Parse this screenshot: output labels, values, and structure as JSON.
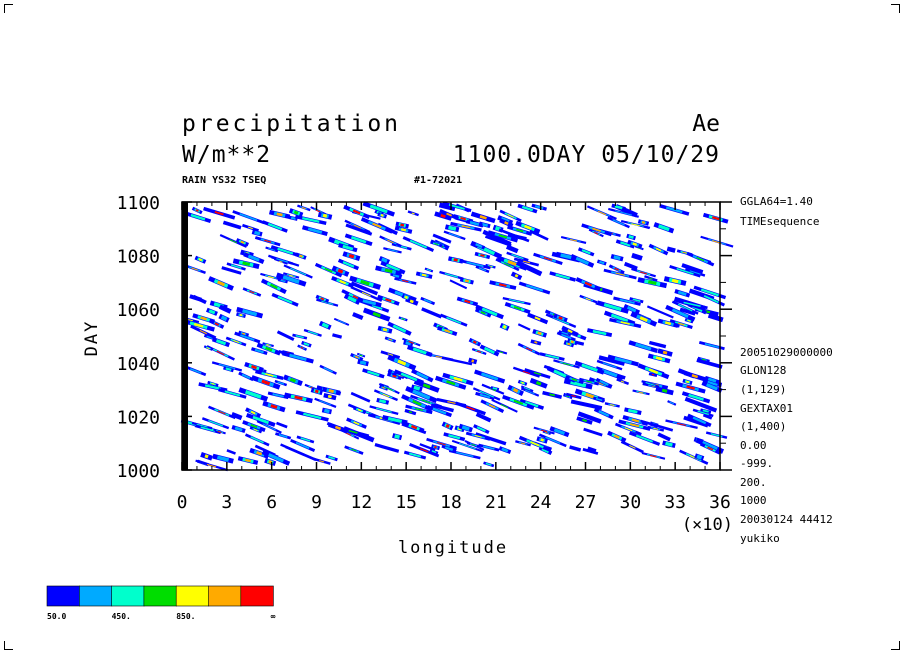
{
  "header": {
    "title": "precipitation",
    "model": "Ae",
    "units": "W/m**2",
    "time": "1100.0DAY 05/10/29",
    "varinfo": "RAIN YS32 TSEQ",
    "ref": "#1-72021"
  },
  "sideinfo": [
    "GGLA64=1.40",
    "TIMEsequence",
    "20051029000000",
    "GLON128",
    "(1,129)",
    "GEXTAX01",
    "(1,400)",
    "0.00",
    "-999.",
    "200.",
    "1000",
    "20030124  44412",
    "yukiko"
  ],
  "chart_data": {
    "type": "heatmap",
    "title": "precipitation",
    "xlabel": "longitude",
    "ylabel": "DAY",
    "x_multiplier": "(×10)",
    "xlim": [
      0,
      36
    ],
    "ylim": [
      1000,
      1100
    ],
    "x_ticks": [
      "0",
      "3",
      "6",
      "9",
      "12",
      "15",
      "18",
      "21",
      "24",
      "27",
      "30",
      "33",
      "36"
    ],
    "y_ticks": [
      "1000",
      "1020",
      "1040",
      "1060",
      "1080",
      "1100"
    ],
    "colorbar": {
      "colors": [
        "#0000ff",
        "#00aaff",
        "#00ffcc",
        "#00dd00",
        "#ffff00",
        "#ffaa00",
        "#ff0000"
      ],
      "labels": [
        "50.0",
        "450.",
        "850.",
        "∞"
      ]
    },
    "pattern": "westward-propagating precipitation streaks across all longitudes, days 1000-1100"
  }
}
